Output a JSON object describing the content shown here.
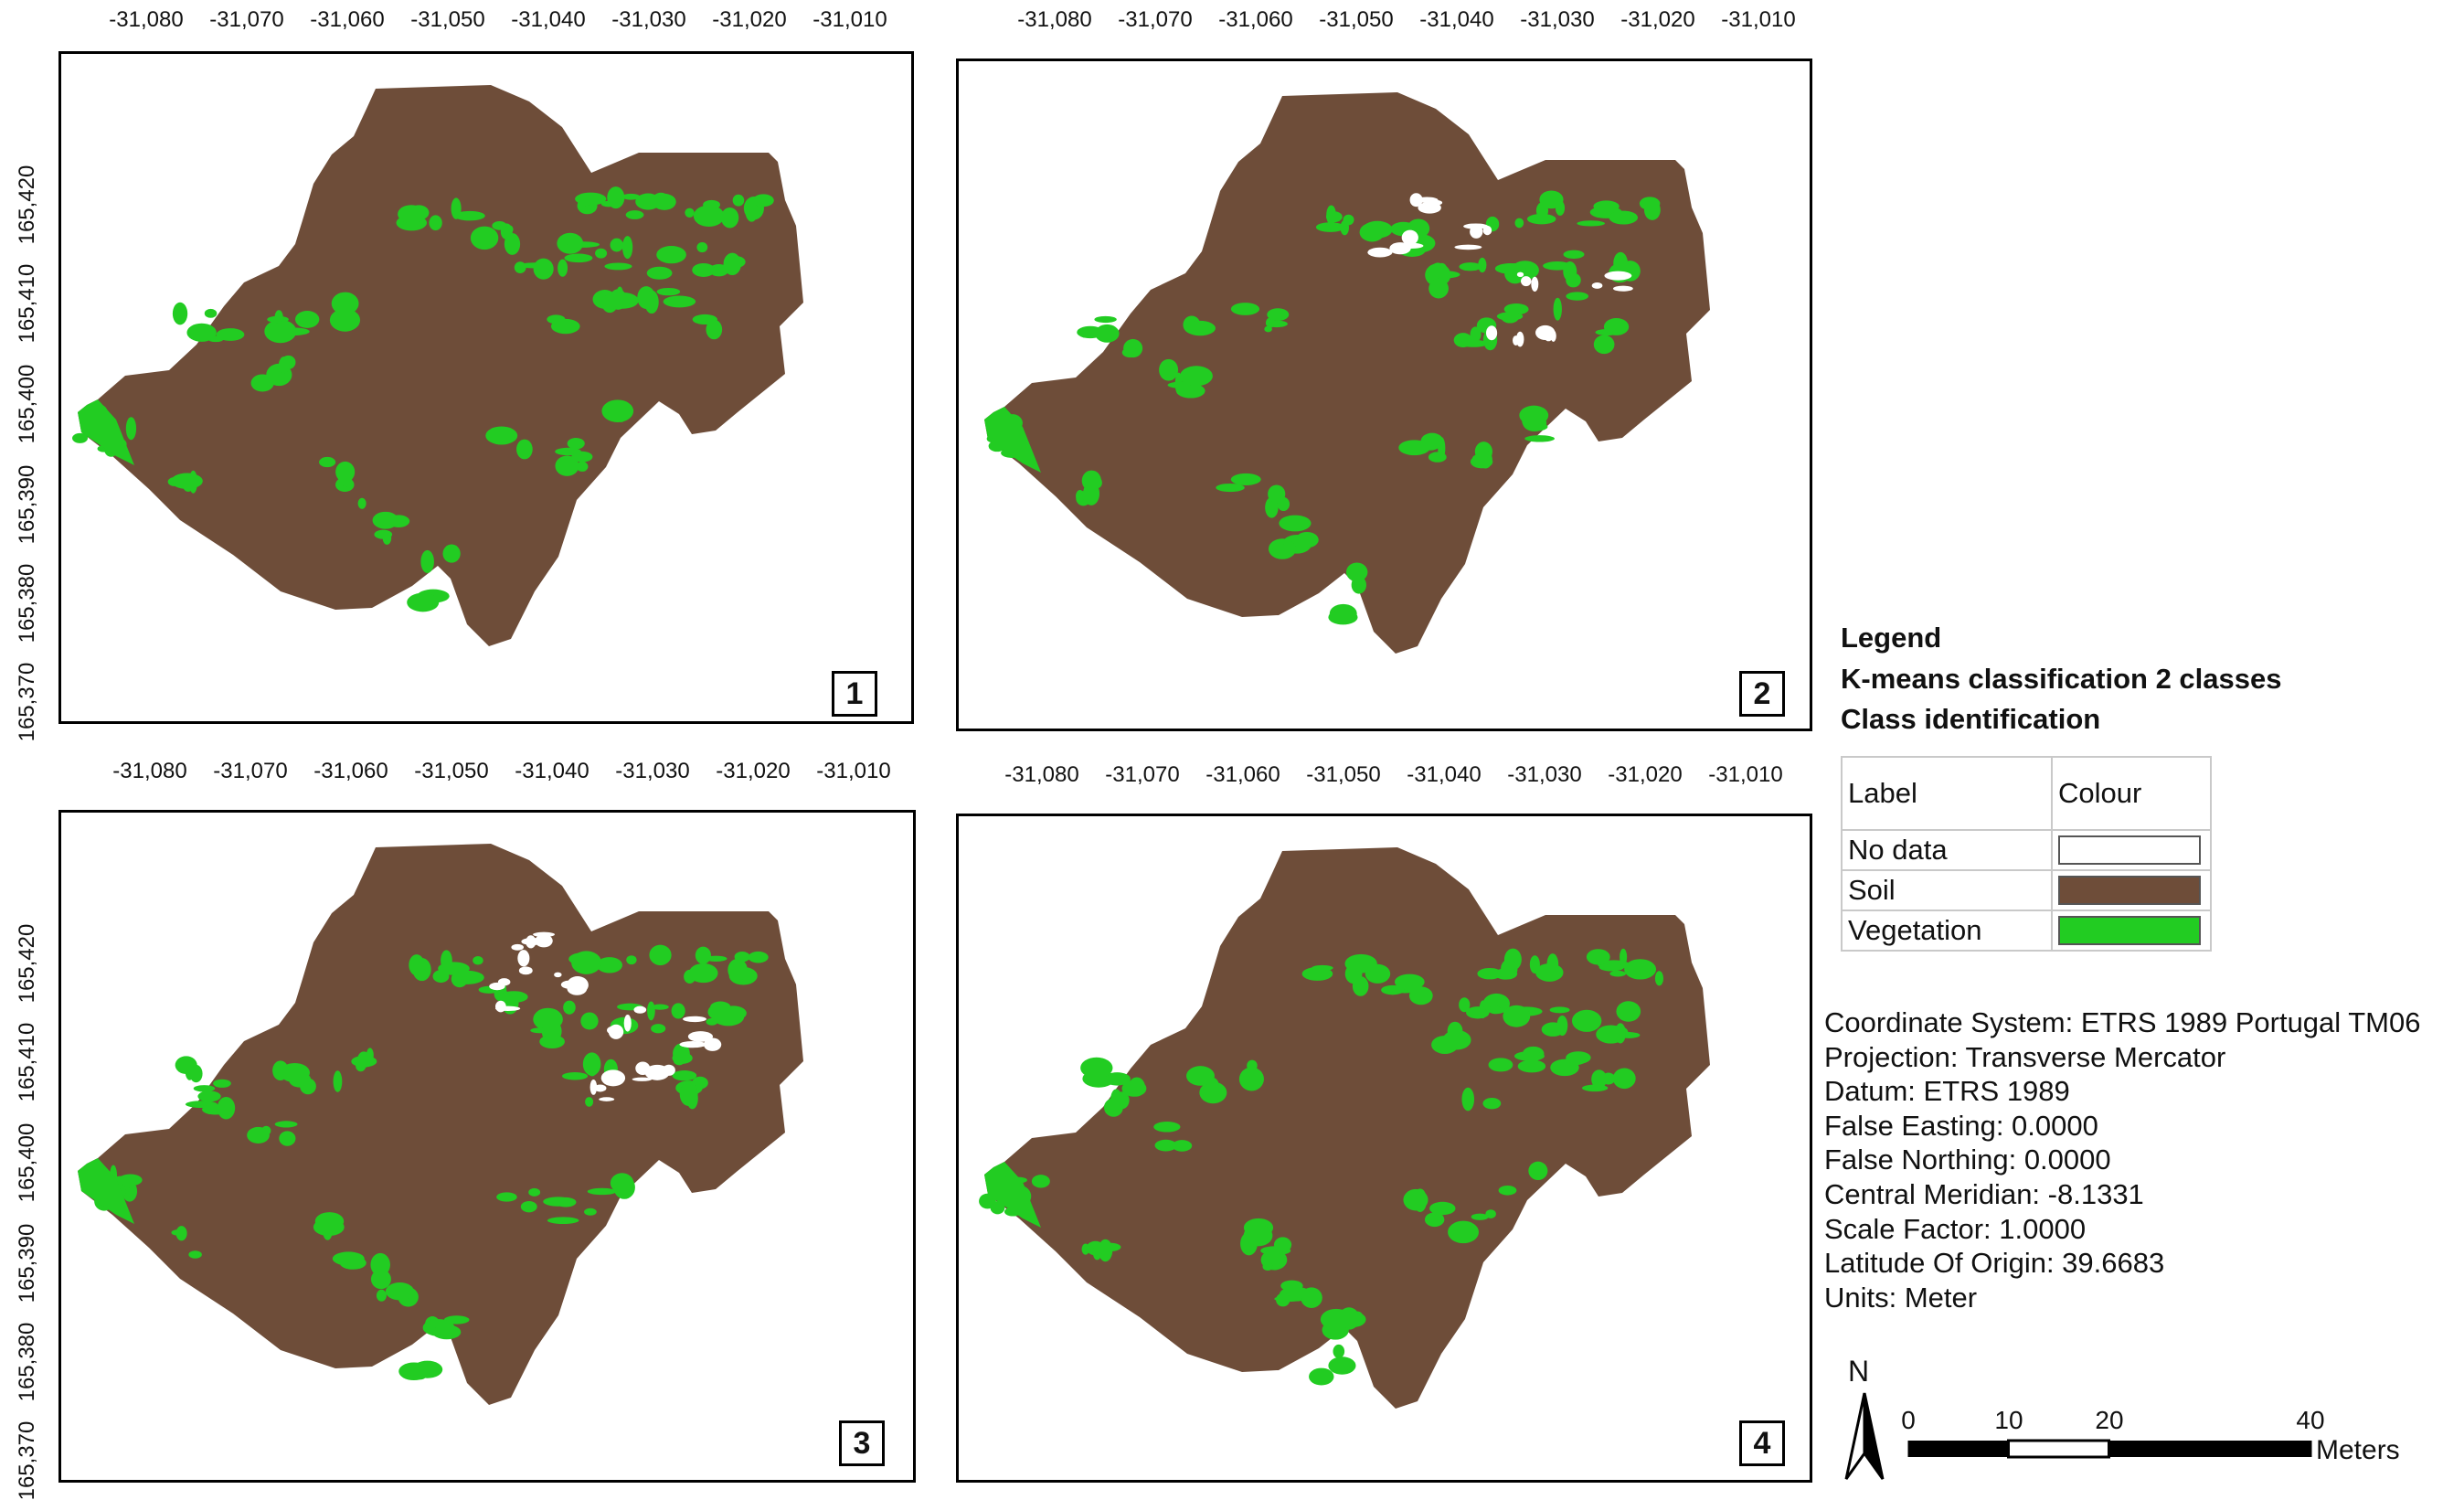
{
  "panels": [
    {
      "number": "1",
      "x_ticks": [
        "-31,080",
        "-31,070",
        "-31,060",
        "-31,050",
        "-31,040",
        "-31,030",
        "-31,020",
        "-31,010"
      ],
      "y_ticks": [
        "165,420",
        "165,410",
        "165,400",
        "165,390",
        "165,380",
        "165,370"
      ],
      "has_nodata": false
    },
    {
      "number": "2",
      "x_ticks": [
        "-31,080",
        "-31,070",
        "-31,060",
        "-31,050",
        "-31,040",
        "-31,030",
        "-31,020",
        "-31,010"
      ],
      "y_ticks": [],
      "has_nodata": true
    },
    {
      "number": "3",
      "x_ticks": [
        "-31,080",
        "-31,070",
        "-31,060",
        "-31,050",
        "-31,040",
        "-31,030",
        "-31,020",
        "-31,010"
      ],
      "y_ticks": [
        "165,420",
        "165,410",
        "165,400",
        "165,390",
        "165,380",
        "165,370"
      ],
      "has_nodata": true
    },
    {
      "number": "4",
      "x_ticks": [
        "-31,080",
        "-31,070",
        "-31,060",
        "-31,050",
        "-31,040",
        "-31,030",
        "-31,020",
        "-31,010"
      ],
      "y_ticks": [],
      "has_nodata": false
    }
  ],
  "legend": {
    "title": "Legend",
    "subtitle": "K-means classification 2 classes",
    "subtitle2": "Class identification",
    "header_label": "Label",
    "header_colour": "Colour",
    "classes": [
      {
        "label": "No data",
        "color": "#ffffff"
      },
      {
        "label": "Soil",
        "color": "#6e4d39"
      },
      {
        "label": "Vegetation",
        "color": "#22cc22"
      }
    ]
  },
  "coordinate_system": [
    "Coordinate System: ETRS 1989 Portugal TM06",
    "Projection: Transverse Mercator",
    "Datum: ETRS 1989",
    "False Easting: 0.0000",
    "False Northing: 0.0000",
    "Central Meridian: -8.1331",
    "Scale Factor: 1.0000",
    "Latitude Of Origin: 39.6683",
    "Units: Meter"
  ],
  "north_arrow": {
    "letter": "N"
  },
  "scale_bar": {
    "labels": [
      "0",
      "10",
      "20",
      "40"
    ],
    "unit": "Meters"
  },
  "colors": {
    "soil": "#6e4d39",
    "vegetation": "#22cc22",
    "nodata": "#ffffff"
  }
}
